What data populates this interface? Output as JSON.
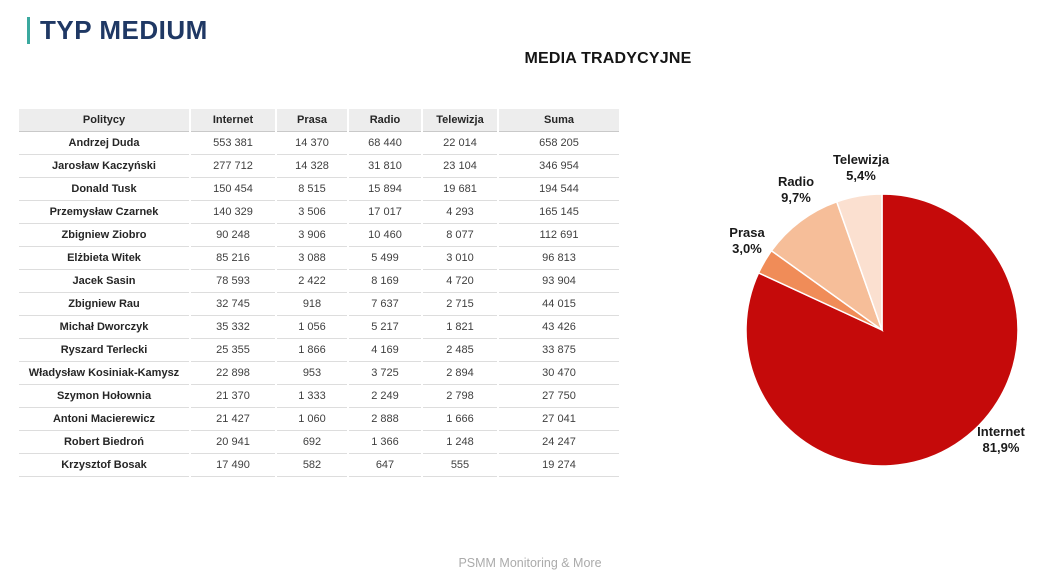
{
  "slide": {
    "title": "TYP MEDIUM",
    "footer": "PSMM Monitoring & More",
    "accent_color": "#3BA99F",
    "title_color": "#1F3864"
  },
  "chart_data": [
    {
      "type": "table",
      "columns": [
        "Politycy",
        "Internet",
        "Prasa",
        "Radio",
        "Telewizja",
        "Suma"
      ],
      "rows": [
        [
          "Andrzej Duda",
          "553 381",
          "14 370",
          "68 440",
          "22 014",
          "658 205"
        ],
        [
          "Jarosław Kaczyński",
          "277 712",
          "14 328",
          "31 810",
          "23 104",
          "346 954"
        ],
        [
          "Donald Tusk",
          "150 454",
          "8 515",
          "15 894",
          "19 681",
          "194 544"
        ],
        [
          "Przemysław Czarnek",
          "140 329",
          "3 506",
          "17 017",
          "4 293",
          "165 145"
        ],
        [
          "Zbigniew Ziobro",
          "90 248",
          "3 906",
          "10 460",
          "8 077",
          "112 691"
        ],
        [
          "Elżbieta Witek",
          "85 216",
          "3 088",
          "5 499",
          "3 010",
          "96 813"
        ],
        [
          "Jacek Sasin",
          "78 593",
          "2 422",
          "8 169",
          "4 720",
          "93 904"
        ],
        [
          "Zbigniew Rau",
          "32 745",
          "918",
          "7 637",
          "2 715",
          "44 015"
        ],
        [
          "Michał Dworczyk",
          "35 332",
          "1 056",
          "5 217",
          "1 821",
          "43 426"
        ],
        [
          "Ryszard Terlecki",
          "25 355",
          "1 866",
          "4 169",
          "2 485",
          "33 875"
        ],
        [
          "Władysław Kosiniak-Kamysz",
          "22 898",
          "953",
          "3 725",
          "2 894",
          "30 470"
        ],
        [
          "Szymon Hołownia",
          "21 370",
          "1 333",
          "2 249",
          "2 798",
          "27 750"
        ],
        [
          "Antoni Macierewicz",
          "21 427",
          "1 060",
          "2 888",
          "1 666",
          "27 041"
        ],
        [
          "Robert Biedroń",
          "20 941",
          "692",
          "1 366",
          "1 248",
          "24 247"
        ],
        [
          "Krzysztof Bosak",
          "17 490",
          "582",
          "647",
          "555",
          "19 274"
        ]
      ]
    },
    {
      "type": "pie",
      "title": "MEDIA TRADYCYJNE",
      "labels": [
        "Internet",
        "Prasa",
        "Radio",
        "Telewizja"
      ],
      "values": [
        81.9,
        3.0,
        9.7,
        5.4
      ],
      "percent_labels": [
        "81,9%",
        "3,0%",
        "9,7%",
        "5,4%"
      ],
      "colors": [
        "#C50A0A",
        "#F08C58",
        "#F6BE99",
        "#FBE0D0"
      ],
      "start_angle_deg": 0,
      "direction": "clockwise",
      "legend_position": "outside-labels"
    }
  ]
}
